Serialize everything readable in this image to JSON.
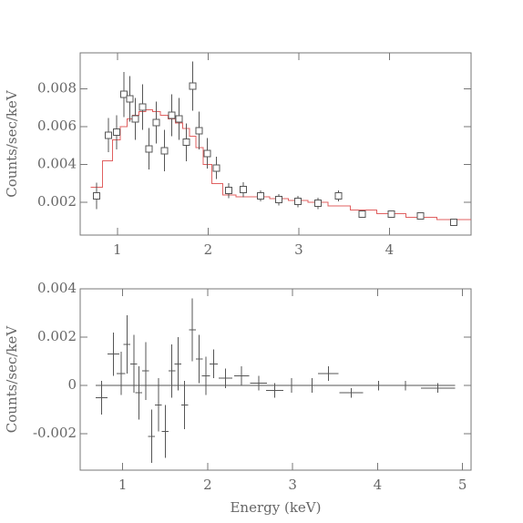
{
  "chart_data": [
    {
      "type": "scatter",
      "ylabel": "Counts/sec/keV",
      "color": "#555555",
      "model_color": "#e06060",
      "x": [
        0.77,
        0.9,
        0.99,
        1.07,
        1.14,
        1.2,
        1.28,
        1.35,
        1.43,
        1.52,
        1.6,
        1.68,
        1.76,
        1.83,
        1.9,
        1.99,
        2.09,
        2.23,
        2.39,
        2.58,
        2.78,
        2.99,
        3.21,
        3.44,
        3.7,
        4.02,
        4.34,
        4.71
      ],
      "values": [
        0.00234,
        0.00555,
        0.0057,
        0.0077,
        0.00747,
        0.00641,
        0.00704,
        0.00483,
        0.00622,
        0.00473,
        0.0066,
        0.00641,
        0.00517,
        0.00814,
        0.00579,
        0.00459,
        0.00382,
        0.00262,
        0.00267,
        0.00234,
        0.00214,
        0.00205,
        0.00195,
        0.00234,
        0.00138,
        0.00138,
        0.00128,
        0.00094
      ],
      "yerr": [
        0.0007,
        0.0009,
        0.0009,
        0.0012,
        0.0012,
        0.0011,
        0.0012,
        0.0011,
        0.0011,
        0.0011,
        0.0011,
        0.0011,
        0.001,
        0.0013,
        0.001,
        0.0008,
        0.0006,
        0.0004,
        0.0004,
        0.0003,
        0.0003,
        0.0003,
        0.0003,
        0.0003,
        0.0002,
        0.0002,
        0.0002,
        0.0002
      ],
      "model_values": [
        0.0028,
        0.0042,
        0.0053,
        0.006,
        0.0064,
        0.0066,
        0.0068,
        0.0069,
        0.0068,
        0.0066,
        0.0064,
        0.0062,
        0.0059,
        0.0055,
        0.0049,
        0.004,
        0.003,
        0.0024,
        0.0023,
        0.0023,
        0.0022,
        0.0021,
        0.002,
        0.0018,
        0.0016,
        0.0014,
        0.0012,
        0.0011
      ],
      "xlim": [
        0.59,
        4.9
      ],
      "ylim": [
        0.00027,
        0.0099
      ],
      "xticks": [
        1,
        2,
        3,
        4
      ],
      "yticks": [
        0.002,
        0.004,
        0.006,
        0.008
      ]
    },
    {
      "type": "residual",
      "ylabel": "Counts/sec/keV",
      "xlabel": "Energy (keV)",
      "color": "#555555",
      "x": [
        0.75,
        0.89,
        0.98,
        1.05,
        1.13,
        1.19,
        1.27,
        1.34,
        1.42,
        1.5,
        1.58,
        1.65,
        1.73,
        1.82,
        1.9,
        1.98,
        2.07,
        2.21,
        2.4,
        2.6,
        2.79,
        2.99,
        3.23,
        3.42,
        3.69,
        4.01,
        4.33,
        4.71
      ],
      "xerr": [
        0.07,
        0.07,
        0.05,
        0.04,
        0.04,
        0.04,
        0.04,
        0.04,
        0.04,
        0.04,
        0.04,
        0.04,
        0.04,
        0.04,
        0.04,
        0.05,
        0.05,
        0.08,
        0.09,
        0.1,
        0.1,
        0.1,
        0.11,
        0.12,
        0.14,
        0.16,
        0.17,
        0.2
      ],
      "values": [
        -0.0005,
        0.0013,
        0.0005,
        0.0017,
        0.0009,
        -0.0003,
        0.0006,
        -0.0021,
        -0.0008,
        -0.0019,
        0.0006,
        0.0009,
        -0.0008,
        0.0023,
        0.0011,
        0.0004,
        0.0009,
        0.0003,
        0.0004,
        0.0001,
        -0.0002,
        0,
        0,
        0.0005,
        -0.0003,
        0,
        0,
        -0.0001
      ],
      "yerr": [
        0.0007,
        0.0009,
        0.0009,
        0.0012,
        0.0012,
        0.0011,
        0.0012,
        0.0011,
        0.0011,
        0.0011,
        0.0011,
        0.0011,
        0.001,
        0.0013,
        0.001,
        0.0008,
        0.0006,
        0.0004,
        0.0004,
        0.0003,
        0.0003,
        0.0003,
        0.0003,
        0.0003,
        0.0002,
        0.0002,
        0.0002,
        0.0002
      ],
      "xlim": [
        0.5,
        5.1
      ],
      "ylim": [
        -0.0035,
        0.004
      ],
      "xticks": [
        1,
        2,
        3,
        4,
        5
      ],
      "yticks": [
        -0.002,
        0,
        0.002,
        0.004
      ]
    }
  ]
}
